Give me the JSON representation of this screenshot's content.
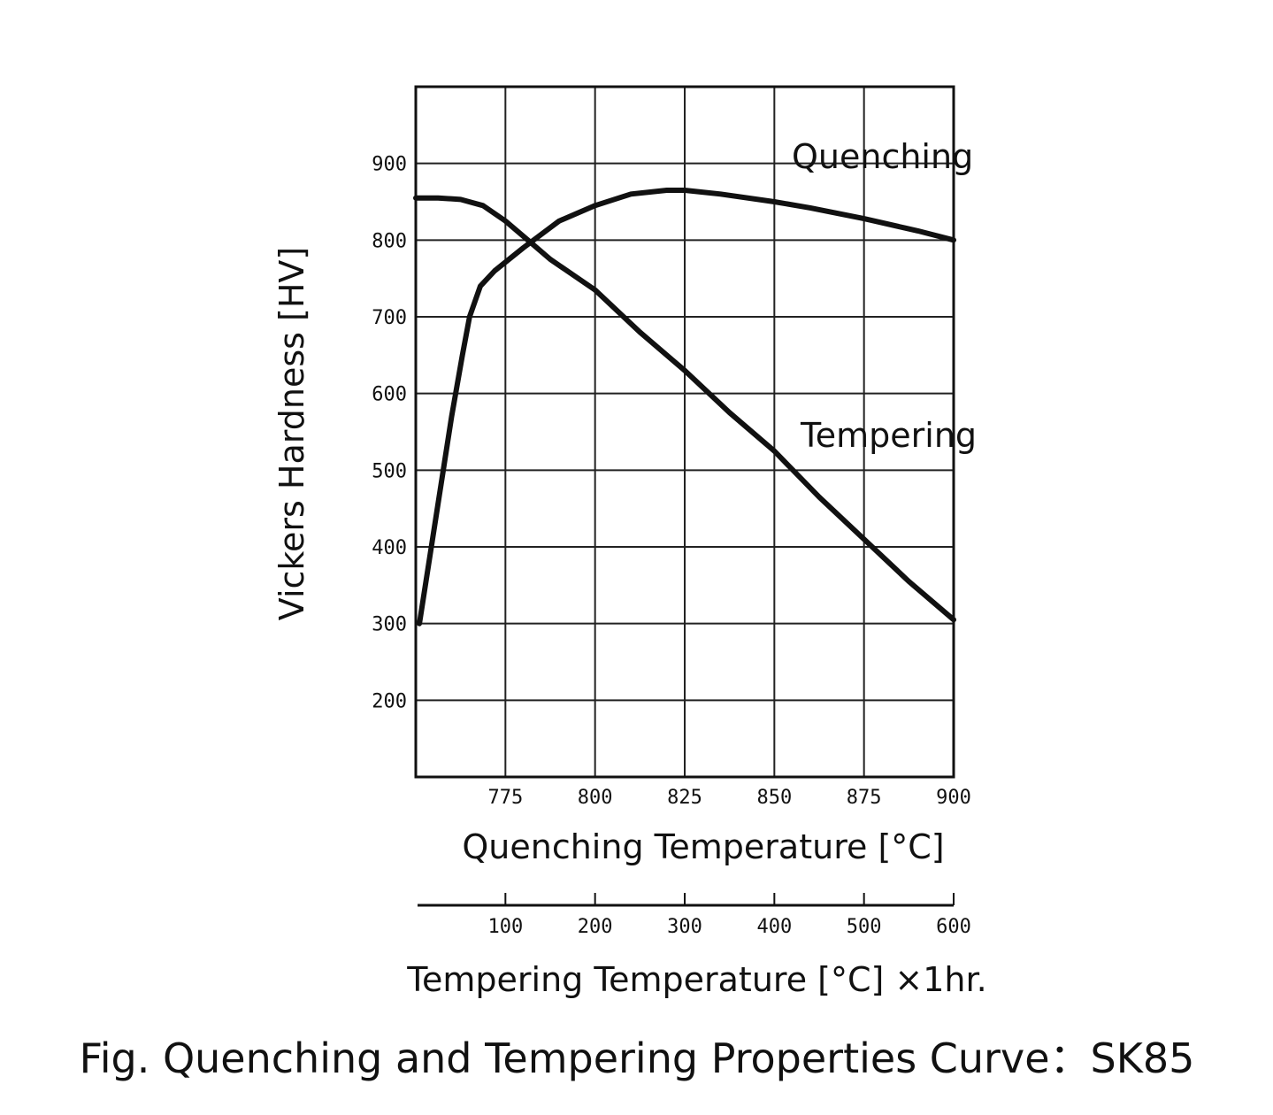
{
  "chart_data": {
    "type": "line",
    "title": "Fig. Quenching and Tempering Properties Curve：SK85",
    "ylabel": "Vickers Hardness [HV]",
    "ylim": [
      100,
      1000
    ],
    "y_ticks": [
      200,
      300,
      400,
      500,
      600,
      700,
      800,
      900
    ],
    "grid": true,
    "x_axes": [
      {
        "id": "quenching",
        "label": "Quenching Temperature [°C]",
        "range": [
          750,
          900
        ],
        "ticks": [
          775,
          800,
          825,
          850,
          875,
          900
        ]
      },
      {
        "id": "tempering",
        "label": "Tempering Temperature [°C] ×1hr.",
        "range": [
          0,
          600
        ],
        "ticks": [
          100,
          200,
          300,
          400,
          500,
          600
        ]
      }
    ],
    "series": [
      {
        "name": "Quenching",
        "x_axis": "quenching",
        "x": [
          751,
          760,
          763,
          765,
          768,
          772,
          780,
          790,
          800,
          810,
          820,
          825,
          835,
          850,
          860,
          875,
          890,
          900
        ],
        "values": [
          300,
          570,
          650,
          700,
          740,
          760,
          790,
          825,
          845,
          860,
          865,
          865,
          860,
          850,
          842,
          828,
          812,
          800
        ]
      },
      {
        "name": "Tempering",
        "x_axis": "tempering",
        "x": [
          0,
          25,
          50,
          75,
          100,
          125,
          150,
          200,
          250,
          300,
          350,
          400,
          450,
          500,
          550,
          600
        ],
        "values": [
          855,
          855,
          853,
          845,
          825,
          800,
          775,
          735,
          680,
          630,
          575,
          525,
          465,
          410,
          355,
          305
        ]
      }
    ]
  }
}
